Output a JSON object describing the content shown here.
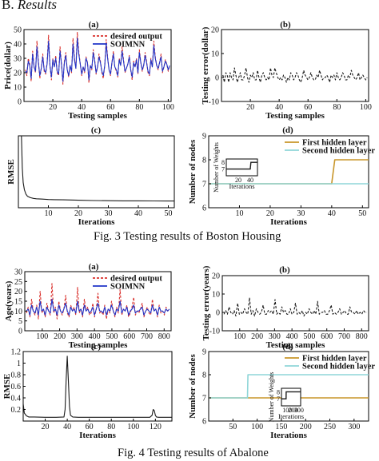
{
  "section": {
    "number": "B.",
    "title": "Results"
  },
  "captions": {
    "fig3": "Fig.  3 Testing results of Boston Housing",
    "fig4": "Fig.  4 Testing results of Abalone"
  },
  "colors": {
    "red": "#d9302c",
    "blue": "#2034c8",
    "black": "#1a1a1a",
    "gold": "#c8962a",
    "cyan": "#8fd6d8"
  },
  "chart_data": [
    {
      "id": "fig3a",
      "type": "line",
      "panel_label": "(a)",
      "xlabel": "Testing samples",
      "ylabel": "Price(dollar)",
      "xlim": [
        0,
        102
      ],
      "ylim": [
        0,
        50
      ],
      "xticks": [
        20,
        40,
        60,
        80,
        100
      ],
      "yticks": [
        0,
        10,
        20,
        30,
        40,
        50
      ],
      "legend": "top-right",
      "series": [
        {
          "name": "desired output",
          "color": "#d9302c",
          "dashed": true,
          "values": [
            22,
            18,
            30,
            26,
            14,
            35,
            24,
            20,
            42,
            28,
            16,
            23,
            33,
            21,
            19,
            27,
            46,
            25,
            15,
            30,
            24,
            32,
            20,
            18,
            38,
            26,
            12,
            28,
            34,
            22,
            17,
            25,
            20,
            44,
            30,
            23,
            48,
            35,
            26,
            18,
            24,
            20,
            31,
            27,
            13,
            25,
            22,
            36,
            29,
            19,
            24,
            33,
            28,
            20,
            16,
            25,
            43,
            31,
            22,
            18,
            27,
            35,
            24,
            21,
            17,
            30,
            25,
            38,
            29,
            20,
            23,
            26,
            32,
            22,
            15,
            28,
            24,
            30,
            19,
            36,
            27,
            21,
            25,
            34,
            28,
            20,
            18,
            30,
            24,
            42,
            31,
            25,
            22,
            27,
            33,
            20,
            24,
            29,
            26,
            21,
            25
          ]
        },
        {
          "name": "SOIMNN",
          "color": "#2034c8",
          "dashed": false,
          "values": [
            21,
            20,
            28,
            25,
            16,
            33,
            24,
            21,
            38,
            27,
            18,
            23,
            31,
            22,
            20,
            26,
            42,
            25,
            17,
            29,
            24,
            30,
            21,
            19,
            35,
            26,
            14,
            27,
            32,
            22,
            18,
            25,
            21,
            40,
            29,
            23,
            44,
            33,
            26,
            19,
            24,
            21,
            30,
            27,
            15,
            25,
            23,
            34,
            28,
            20,
            24,
            31,
            27,
            21,
            18,
            25,
            40,
            30,
            22,
            19,
            27,
            33,
            24,
            22,
            18,
            29,
            25,
            35,
            28,
            21,
            23,
            26,
            31,
            22,
            17,
            27,
            24,
            29,
            20,
            34,
            27,
            22,
            25,
            32,
            27,
            21,
            19,
            29,
            24,
            39,
            30,
            25,
            23,
            27,
            31,
            21,
            24,
            28,
            26,
            22,
            25
          ]
        }
      ]
    },
    {
      "id": "fig3b",
      "type": "line",
      "panel_label": "(b)",
      "xlabel": "Testing samples",
      "ylabel": "Testing error(dollar)",
      "xlim": [
        0,
        102
      ],
      "ylim": [
        -10,
        20
      ],
      "xticks": [
        20,
        40,
        60,
        80,
        100
      ],
      "yticks": [
        -10,
        0,
        10,
        20
      ],
      "series": [
        {
          "name": "",
          "color": "#1a1a1a",
          "dashed": true,
          "values": [
            1,
            -2,
            2,
            1,
            -2,
            2,
            0,
            -1,
            4,
            1,
            -2,
            0,
            2,
            -1,
            -1,
            1,
            4,
            0,
            -2,
            1,
            0,
            2,
            -1,
            -1,
            3,
            0,
            -2,
            1,
            2,
            0,
            -1,
            0,
            -1,
            4,
            1,
            0,
            4,
            2,
            0,
            -1,
            0,
            -1,
            1,
            0,
            -2,
            0,
            -1,
            2,
            1,
            -1,
            0,
            2,
            1,
            -1,
            -2,
            0,
            3,
            1,
            0,
            -1,
            0,
            2,
            0,
            -1,
            -1,
            1,
            0,
            3,
            1,
            -1,
            0,
            0,
            1,
            0,
            -2,
            1,
            0,
            1,
            -1,
            2,
            0,
            -1,
            0,
            2,
            1,
            -1,
            -1,
            1,
            0,
            3,
            1,
            0,
            -1,
            0,
            2,
            -1,
            0,
            1,
            0,
            -1,
            0
          ]
        }
      ]
    },
    {
      "id": "fig3c",
      "type": "line",
      "panel_label": "(c)",
      "xlabel": "Iterations",
      "ylabel": "RMSE",
      "xlim": [
        0,
        52
      ],
      "ylim": [
        0,
        1
      ],
      "xticks": [
        10,
        20,
        30,
        40,
        50
      ],
      "yticks": [],
      "series": [
        {
          "name": "",
          "color": "#1a1a1a",
          "dashed": false,
          "x": [
            1,
            1.3,
            1.6,
            2,
            2.5,
            3,
            4,
            5,
            6,
            8,
            10,
            12,
            15,
            20,
            25,
            30,
            35,
            40,
            45,
            50,
            52
          ],
          "values": [
            1.0,
            0.55,
            0.35,
            0.25,
            0.19,
            0.16,
            0.14,
            0.13,
            0.125,
            0.12,
            0.115,
            0.112,
            0.11,
            0.105,
            0.1,
            0.098,
            0.096,
            0.095,
            0.094,
            0.093,
            0.093
          ]
        }
      ]
    },
    {
      "id": "fig3d",
      "type": "line",
      "panel_label": "(d)",
      "xlabel": "Iterations",
      "ylabel": "Number of nodes",
      "xlim": [
        0,
        52
      ],
      "ylim": [
        6,
        9
      ],
      "xticks": [
        10,
        20,
        30,
        40,
        50
      ],
      "yticks": [
        6,
        7,
        8,
        9
      ],
      "legend": "top-right",
      "series": [
        {
          "name": "First hidden layer",
          "color": "#c8962a",
          "x": [
            0,
            40,
            41,
            52
          ],
          "values": [
            7,
            7,
            8,
            8
          ]
        },
        {
          "name": "Second hidden layer",
          "color": "#8fd6d8",
          "x": [
            0,
            52
          ],
          "values": [
            7,
            7
          ]
        }
      ],
      "inset": {
        "xlabel": "Iterations",
        "ylabel": "Number of Weights",
        "xlim": [
          0,
          52
        ],
        "ylim": [
          6,
          8.5
        ],
        "xticks": [
          20,
          40
        ],
        "yticks": [
          7,
          8
        ],
        "series": [
          {
            "name": "",
            "color": "#1a1a1a",
            "x": [
              0,
              40,
              41,
              52
            ],
            "values": [
              7,
              7,
              8,
              8
            ]
          }
        ]
      }
    },
    {
      "id": "fig4a",
      "type": "line",
      "panel_label": "(a)",
      "xlabel": "Testing samples",
      "ylabel": "Age(years)",
      "xlim": [
        0,
        840
      ],
      "ylim": [
        0,
        30
      ],
      "xticks": [
        100,
        200,
        300,
        400,
        500,
        600,
        700,
        800
      ],
      "yticks": [
        0,
        5,
        10,
        15,
        20,
        25,
        30
      ],
      "legend": "top-right",
      "series": [
        {
          "name": "desired output",
          "color": "#d9302c",
          "dashed": true,
          "values": [
            9,
            12,
            7,
            16,
            10,
            8,
            13,
            6,
            20,
            9,
            11,
            7,
            14,
            10,
            8,
            24,
            9,
            12,
            6,
            15,
            10,
            8,
            11,
            18,
            9,
            7,
            13,
            10,
            12,
            8,
            22,
            9,
            11,
            7,
            16,
            10,
            12,
            8,
            9,
            14,
            7,
            11,
            19,
            9,
            10,
            8,
            13,
            6,
            11,
            9,
            15,
            10,
            7,
            12,
            9,
            21,
            8,
            11,
            10,
            13,
            7,
            9,
            12,
            17,
            8,
            10,
            9,
            11,
            14,
            7,
            10,
            12,
            9,
            8,
            16,
            10,
            11,
            7,
            13,
            9,
            10,
            8,
            12,
            10,
            11
          ]
        },
        {
          "name": "SOIMNN",
          "color": "#2034c8",
          "dashed": false,
          "values": [
            10,
            11,
            8,
            13,
            10,
            9,
            12,
            8,
            15,
            10,
            11,
            8,
            12,
            10,
            9,
            16,
            10,
            11,
            8,
            13,
            10,
            9,
            11,
            14,
            10,
            8,
            12,
            10,
            11,
            9,
            15,
            10,
            11,
            8,
            13,
            10,
            11,
            9,
            10,
            12,
            8,
            11,
            14,
            10,
            10,
            9,
            12,
            8,
            11,
            10,
            13,
            10,
            8,
            11,
            10,
            15,
            9,
            11,
            10,
            12,
            8,
            10,
            11,
            13,
            9,
            10,
            10,
            11,
            12,
            8,
            10,
            11,
            10,
            9,
            13,
            10,
            11,
            8,
            12,
            10,
            10,
            9,
            11,
            10,
            11
          ]
        }
      ]
    },
    {
      "id": "fig4b",
      "type": "line",
      "panel_label": "(b)",
      "xlabel": "Testing samples",
      "ylabel": "Testing error(years)",
      "xlim": [
        0,
        840
      ],
      "ylim": [
        -10,
        20
      ],
      "xticks": [
        100,
        200,
        300,
        400,
        500,
        600,
        700,
        800
      ],
      "yticks": [
        -10,
        0,
        10,
        20
      ],
      "series": [
        {
          "name": "",
          "color": "#1a1a1a",
          "dashed": true,
          "values": [
            -1,
            1,
            -1,
            3,
            0,
            -1,
            1,
            -2,
            5,
            -1,
            0,
            -1,
            2,
            0,
            -1,
            8,
            -1,
            1,
            -2,
            2,
            0,
            -1,
            0,
            4,
            -1,
            -1,
            1,
            0,
            1,
            -1,
            7,
            -1,
            0,
            -1,
            3,
            0,
            1,
            -1,
            -1,
            2,
            -1,
            0,
            5,
            -1,
            0,
            -1,
            1,
            -2,
            0,
            -1,
            2,
            0,
            -1,
            1,
            -1,
            6,
            -1,
            0,
            0,
            1,
            -1,
            -1,
            1,
            4,
            -1,
            0,
            -1,
            0,
            2,
            -1,
            0,
            1,
            -1,
            -1,
            3,
            0,
            0,
            -1,
            1,
            -1,
            0,
            -1,
            1,
            0,
            0
          ]
        }
      ]
    },
    {
      "id": "fig4c",
      "type": "line",
      "panel_label": "(c)",
      "xlabel": "Iterations",
      "ylabel": "RMSE",
      "xlim": [
        0,
        135
      ],
      "ylim": [
        0,
        1.2
      ],
      "xticks": [
        20,
        40,
        60,
        80,
        100,
        120
      ],
      "yticks": [
        0.2,
        0.4,
        0.6,
        0.8,
        1,
        1.2
      ],
      "series": [
        {
          "name": "",
          "color": "#1a1a1a",
          "dashed": false,
          "x": [
            0,
            1,
            3,
            5,
            10,
            20,
            30,
            37,
            38,
            39,
            40,
            41,
            42,
            43,
            45,
            50,
            60,
            80,
            100,
            115,
            117,
            118,
            119,
            120,
            121,
            123,
            130,
            135
          ],
          "values": [
            0.3,
            0.14,
            0.09,
            0.07,
            0.07,
            0.065,
            0.065,
            0.07,
            0.2,
            0.7,
            1.12,
            0.7,
            0.25,
            0.1,
            0.07,
            0.065,
            0.065,
            0.065,
            0.065,
            0.065,
            0.1,
            0.2,
            0.18,
            0.1,
            0.07,
            0.065,
            0.065,
            0.065
          ]
        }
      ]
    },
    {
      "id": "fig4d",
      "type": "line",
      "panel_label": "(d)",
      "xlabel": "Iterations",
      "ylabel": "Number of nodes",
      "xlim": [
        0,
        330
      ],
      "ylim": [
        6,
        9
      ],
      "xticks": [
        50,
        100,
        150,
        200,
        250,
        300
      ],
      "yticks": [
        6,
        7,
        8,
        9
      ],
      "legend": "top-right",
      "series": [
        {
          "name": "First hidden layer",
          "color": "#c8962a",
          "x": [
            0,
            330
          ],
          "values": [
            7,
            7
          ]
        },
        {
          "name": "Second hidden layer",
          "color": "#8fd6d8",
          "x": [
            0,
            80,
            81,
            330
          ],
          "values": [
            7,
            7,
            8,
            8
          ]
        }
      ],
      "inset": {
        "xlabel": "Iterations",
        "ylabel": "Number of Weights",
        "xlim": [
          0,
          330
        ],
        "ylim": [
          6,
          8.5
        ],
        "xticks": [
          100,
          200,
          300
        ],
        "yticks": [
          7,
          8
        ],
        "series": [
          {
            "name": "",
            "color": "#1a1a1a",
            "x": [
              0,
              80,
              81,
              330
            ],
            "values": [
              7,
              7,
              8,
              8
            ]
          }
        ]
      }
    }
  ]
}
